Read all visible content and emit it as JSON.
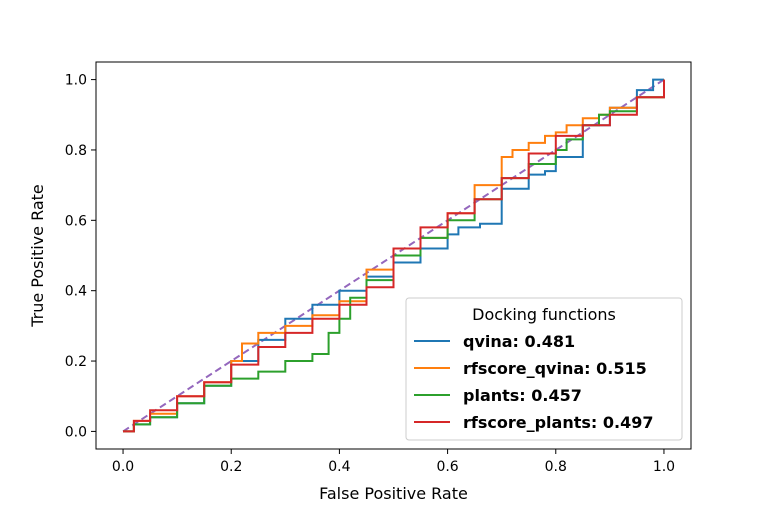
{
  "chart_data": {
    "type": "line",
    "title": "",
    "xlabel": "False Positive Rate",
    "ylabel": "True Positive Rate",
    "xlim": [
      -0.05,
      1.05
    ],
    "ylim": [
      -0.05,
      1.05
    ],
    "xticks": [
      "0.0",
      "0.2",
      "0.4",
      "0.6",
      "0.8",
      "1.0"
    ],
    "yticks": [
      "0.0",
      "0.2",
      "0.4",
      "0.6",
      "0.8",
      "1.0"
    ],
    "grid": false,
    "legend": {
      "title": "Docking functions",
      "placement": "bottom-right",
      "entries": [
        "qvina: 0.481",
        "rfscore_qvina: 0.515",
        "plants: 0.457",
        "rfscore_plants: 0.497"
      ]
    },
    "diagonal": {
      "style": "dashed",
      "color": "#9467bd",
      "x": [
        0,
        1
      ],
      "y": [
        0,
        1
      ]
    },
    "series": [
      {
        "name": "qvina: 0.481",
        "color": "#1f77b4",
        "x": [
          0.0,
          0.02,
          0.05,
          0.1,
          0.15,
          0.2,
          0.25,
          0.3,
          0.35,
          0.4,
          0.45,
          0.5,
          0.55,
          0.6,
          0.62,
          0.66,
          0.7,
          0.75,
          0.78,
          0.8,
          0.85,
          0.9,
          0.95,
          0.98,
          1.0
        ],
        "y": [
          0.0,
          0.02,
          0.04,
          0.08,
          0.13,
          0.2,
          0.26,
          0.32,
          0.36,
          0.4,
          0.44,
          0.48,
          0.52,
          0.56,
          0.58,
          0.59,
          0.69,
          0.73,
          0.74,
          0.78,
          0.87,
          0.92,
          0.97,
          1.0,
          1.0
        ]
      },
      {
        "name": "rfscore_qvina: 0.515",
        "color": "#ff7f0e",
        "x": [
          0.0,
          0.02,
          0.05,
          0.1,
          0.15,
          0.2,
          0.22,
          0.25,
          0.3,
          0.35,
          0.4,
          0.45,
          0.5,
          0.55,
          0.6,
          0.65,
          0.7,
          0.72,
          0.75,
          0.78,
          0.8,
          0.82,
          0.85,
          0.88,
          0.9,
          0.95,
          1.0
        ],
        "y": [
          0.0,
          0.03,
          0.05,
          0.1,
          0.14,
          0.2,
          0.25,
          0.28,
          0.3,
          0.33,
          0.37,
          0.46,
          0.5,
          0.55,
          0.62,
          0.7,
          0.78,
          0.8,
          0.82,
          0.84,
          0.85,
          0.87,
          0.89,
          0.9,
          0.92,
          0.95,
          1.0
        ]
      },
      {
        "name": "plants: 0.457",
        "color": "#2ca02c",
        "x": [
          0.0,
          0.02,
          0.05,
          0.1,
          0.15,
          0.2,
          0.25,
          0.3,
          0.35,
          0.38,
          0.4,
          0.42,
          0.45,
          0.5,
          0.55,
          0.6,
          0.65,
          0.7,
          0.75,
          0.8,
          0.82,
          0.85,
          0.88,
          0.9,
          0.95,
          1.0
        ],
        "y": [
          0.0,
          0.02,
          0.04,
          0.08,
          0.13,
          0.15,
          0.17,
          0.2,
          0.22,
          0.28,
          0.32,
          0.38,
          0.43,
          0.5,
          0.55,
          0.6,
          0.66,
          0.72,
          0.76,
          0.8,
          0.83,
          0.87,
          0.9,
          0.91,
          0.95,
          1.0
        ]
      },
      {
        "name": "rfscore_plants: 0.497",
        "color": "#d62728",
        "x": [
          0.0,
          0.02,
          0.05,
          0.1,
          0.15,
          0.2,
          0.25,
          0.3,
          0.35,
          0.4,
          0.45,
          0.5,
          0.55,
          0.6,
          0.65,
          0.7,
          0.75,
          0.8,
          0.85,
          0.9,
          0.95,
          1.0
        ],
        "y": [
          0.0,
          0.03,
          0.06,
          0.1,
          0.14,
          0.19,
          0.24,
          0.28,
          0.32,
          0.36,
          0.41,
          0.52,
          0.58,
          0.62,
          0.66,
          0.72,
          0.79,
          0.84,
          0.87,
          0.9,
          0.95,
          1.0
        ]
      }
    ]
  }
}
